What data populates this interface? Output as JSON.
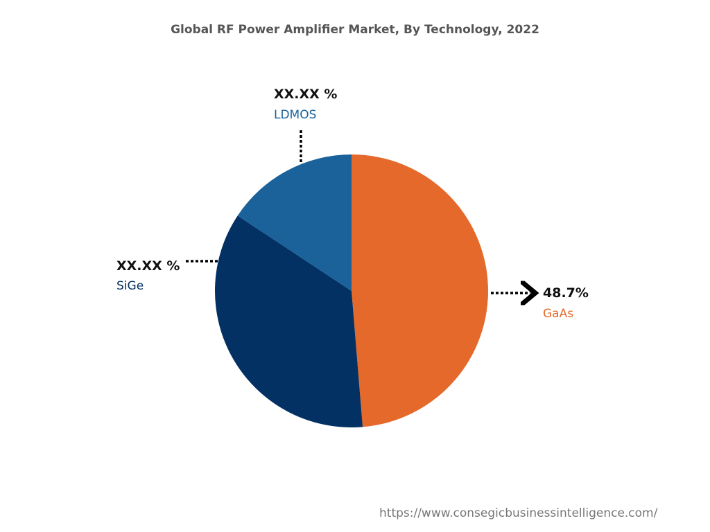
{
  "chart_data": {
    "type": "pie",
    "title": "Global RF Power Amplifier Market, By Technology, 2022",
    "slices": [
      {
        "name": "GaAs",
        "label": "48.7%",
        "value": 48.7,
        "color": "#e5692a"
      },
      {
        "name": "SiGe",
        "label": "XX.XX %",
        "value": 35.6,
        "color": "#033163"
      },
      {
        "name": "LDMOS",
        "label": "XX.XX %",
        "value": 15.7,
        "color": "#1a6299"
      }
    ]
  },
  "source_url": "https://www.consegicbusinessintelligence.com/"
}
